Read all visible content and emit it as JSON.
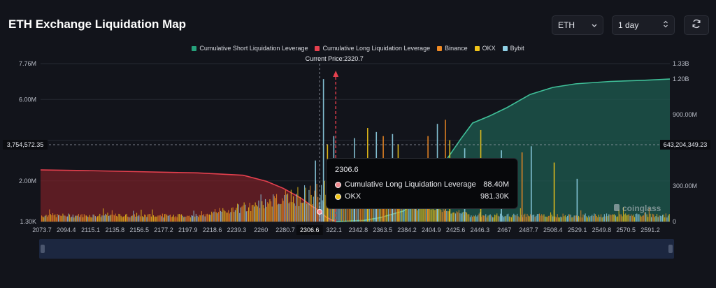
{
  "header": {
    "title": "ETH Exchange Liquidation Map"
  },
  "controls": {
    "asset": "ETH",
    "range": "1 day",
    "asset_icon": "chevron-down-icon",
    "range_icon": "up-down-icon",
    "refresh_icon": "refresh-icon"
  },
  "legend": [
    {
      "label": "Cumulative Short Liquidation Leverage",
      "color": "#26a17b"
    },
    {
      "label": "Cumulative Long Liquidation Leverage",
      "color": "#e5404e"
    },
    {
      "label": "Binance",
      "color": "#f08a24"
    },
    {
      "label": "OKX",
      "color": "#f0c419"
    },
    {
      "label": "Bybit",
      "color": "#8fd0e6"
    }
  ],
  "tooltip": {
    "price": "2306.6",
    "rows": [
      {
        "name": "Cumulative Long Liquidation Leverage",
        "value": "88.40M",
        "color": "#f08a8f"
      },
      {
        "name": "OKX",
        "value": "981.30K",
        "color": "#f0c419"
      }
    ]
  },
  "watermark": "coinglass",
  "chart_data": {
    "type": "bar",
    "current_price_label": "Current Price:2320.7",
    "current_price": 2320.7,
    "hover_price": "2306.6",
    "crosshair_left_label": "3,754,572.35",
    "crosshair_right_label": "643,204,349.23",
    "x_ticks": [
      "2073.7",
      "2094.4",
      "2115.1",
      "2135.8",
      "2156.5",
      "2177.2",
      "2197.9",
      "2218.6",
      "2239.3",
      "2260",
      "2280.7",
      "2306.6",
      "322.1",
      "2342.8",
      "2363.5",
      "2384.2",
      "2404.9",
      "2425.6",
      "2446.3",
      "2467",
      "2487.7",
      "2508.4",
      "2529.1",
      "2549.8",
      "2570.5",
      "2591.2"
    ],
    "x_range": [
      2063.4,
      2611.9
    ],
    "y_left_ticks": [
      "7.76M",
      "6.00M",
      "2.00M",
      "1.30K"
    ],
    "y_left_range": [
      0,
      7760000
    ],
    "y_right_ticks": [
      "1.33B",
      "1.20B",
      "900.00M",
      "300.00M",
      "0"
    ],
    "y_right_range": [
      0,
      1330000000
    ],
    "cumulative_long": {
      "x": [
        2063.4,
        2100,
        2150,
        2200,
        2240,
        2260,
        2275,
        2290,
        2300,
        2306.6,
        2312,
        2318,
        2320.7
      ],
      "y": [
        435000000,
        430000000,
        420000000,
        410000000,
        390000000,
        340000000,
        280000000,
        200000000,
        130000000,
        88400000,
        40000000,
        10000000,
        0
      ]
    },
    "cumulative_short": {
      "x": [
        2320.7,
        2345,
        2360,
        2380,
        2400,
        2410,
        2420,
        2430,
        2440,
        2455,
        2470,
        2490,
        2510,
        2530,
        2560,
        2590,
        2611.9
      ],
      "y": [
        0,
        10000000,
        35000000,
        90000000,
        230000000,
        420000000,
        560000000,
        700000000,
        830000000,
        890000000,
        960000000,
        1070000000,
        1130000000,
        1160000000,
        1180000000,
        1190000000,
        1200000000
      ]
    },
    "bars_spikes": [
      {
        "x": 2309.5,
        "y": 7000000,
        "exchange": "Bybit"
      },
      {
        "x": 2318.5,
        "y": 4200000,
        "exchange": "Bybit"
      },
      {
        "x": 2313,
        "y": 3800000,
        "exchange": "OKX"
      },
      {
        "x": 2302.5,
        "y": 3000000,
        "exchange": "Bybit"
      },
      {
        "x": 2336.5,
        "y": 4100000,
        "exchange": "Bybit"
      },
      {
        "x": 2348,
        "y": 4600000,
        "exchange": "OKX"
      },
      {
        "x": 2355.6,
        "y": 4400000,
        "exchange": "Bybit"
      },
      {
        "x": 2361.6,
        "y": 4200000,
        "exchange": "Binance"
      },
      {
        "x": 2369.7,
        "y": 4300000,
        "exchange": "Bybit"
      },
      {
        "x": 2374.6,
        "y": 3800000,
        "exchange": "OKX"
      },
      {
        "x": 2389.6,
        "y": 3000000,
        "exchange": "Bybit"
      },
      {
        "x": 2400.6,
        "y": 4200000,
        "exchange": "Binance"
      },
      {
        "x": 2408.8,
        "y": 4800000,
        "exchange": "Bybit"
      },
      {
        "x": 2415.8,
        "y": 5000000,
        "exchange": "Binance"
      },
      {
        "x": 2419.6,
        "y": 4000000,
        "exchange": "OKX"
      },
      {
        "x": 2432.6,
        "y": 3600000,
        "exchange": "Bybit"
      },
      {
        "x": 2446.6,
        "y": 4500000,
        "exchange": "OKX"
      },
      {
        "x": 2464.6,
        "y": 3500000,
        "exchange": "Bybit"
      },
      {
        "x": 2482.6,
        "y": 3400000,
        "exchange": "Binance"
      },
      {
        "x": 2490.6,
        "y": 3700000,
        "exchange": "Bybit"
      },
      {
        "x": 2510.6,
        "y": 2900000,
        "exchange": "OKX"
      },
      {
        "x": 2530.6,
        "y": 2100000,
        "exchange": "Bybit"
      }
    ]
  }
}
